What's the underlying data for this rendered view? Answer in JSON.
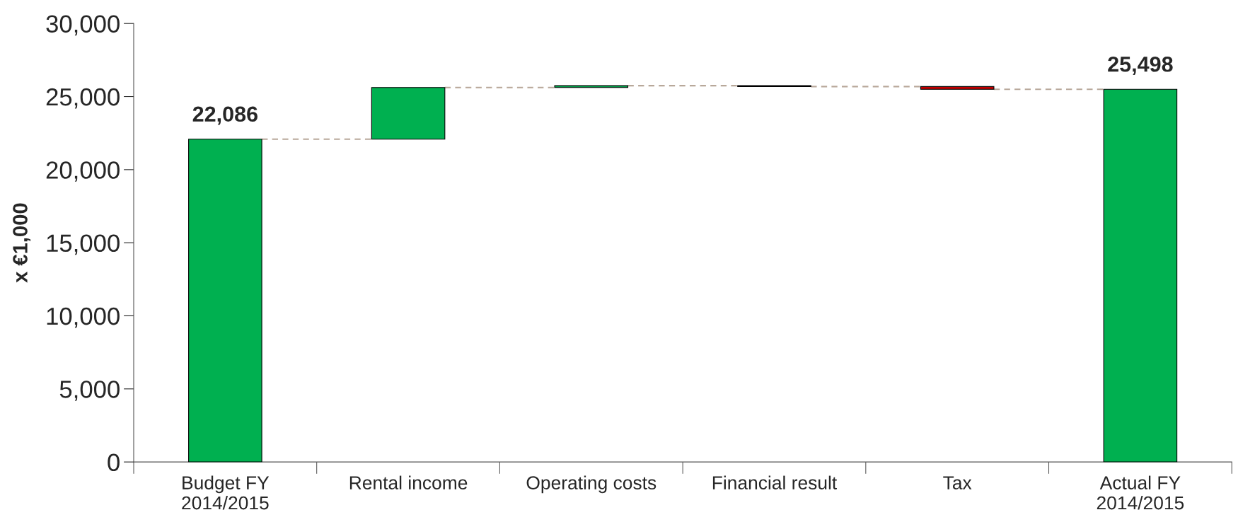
{
  "chart_data": {
    "type": "bar",
    "ylabel": "x €1,000",
    "categories": [
      "Budget FY\n2014/2015",
      "Rental income",
      "Operating costs",
      "Financial result",
      "Tax",
      "Actual FY\n2014/2015"
    ],
    "values": [
      22086,
      3530,
      130,
      -60,
      -188,
      25498
    ],
    "base": [
      0,
      22086,
      25616,
      25746,
      25686,
      0
    ],
    "colors": [
      "#00b050",
      "#00b050",
      "#00b050",
      "#c00000",
      "#c00000",
      "#00b050"
    ],
    "value_labels": [
      "22,086",
      null,
      null,
      null,
      null,
      "25,498"
    ],
    "ylim": [
      0,
      30000
    ],
    "yticks": [
      {
        "value": 0,
        "label": "0"
      },
      {
        "value": 5000,
        "label": "5,000"
      },
      {
        "value": 10000,
        "label": "10,000"
      },
      {
        "value": 15000,
        "label": "15,000"
      },
      {
        "value": 20000,
        "label": "20,000"
      },
      {
        "value": 25000,
        "label": "25,000"
      },
      {
        "value": 30000,
        "label": "30,000"
      }
    ],
    "grid": false,
    "legend": false
  }
}
